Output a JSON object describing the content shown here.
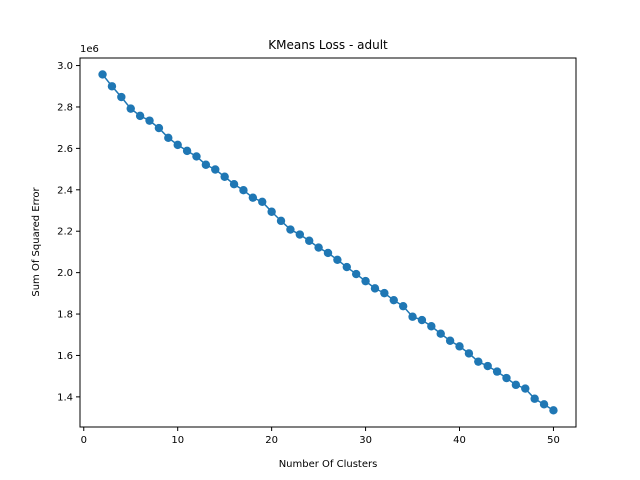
{
  "chart_data": {
    "type": "line",
    "title": "KMeans Loss - adult",
    "xlabel": "Number Of Clusters",
    "ylabel": "Sum Of Squared Error",
    "y_offset_label": "1e6",
    "xlim": [
      -0.4,
      52.4
    ],
    "ylim": [
      1.2545,
      3.0365
    ],
    "xticks": [
      0,
      10,
      20,
      30,
      40,
      50
    ],
    "xtick_labels": [
      "0",
      "10",
      "20",
      "30",
      "40",
      "50"
    ],
    "yticks": [
      1.4,
      1.6,
      1.8,
      2.0,
      2.2,
      2.4,
      2.6,
      2.8,
      3.0
    ],
    "ytick_labels": [
      "1.4",
      "1.6",
      "1.8",
      "2.0",
      "2.2",
      "2.4",
      "2.6",
      "2.8",
      "3.0"
    ],
    "grid": false,
    "marker": "circle",
    "color": "#1f77b4",
    "x": [
      2,
      3,
      4,
      5,
      6,
      7,
      8,
      9,
      10,
      11,
      12,
      13,
      14,
      15,
      16,
      17,
      18,
      19,
      20,
      21,
      22,
      23,
      24,
      25,
      26,
      27,
      28,
      29,
      30,
      31,
      32,
      33,
      34,
      35,
      36,
      37,
      38,
      39,
      40,
      41,
      42,
      43,
      44,
      45,
      46,
      47,
      48,
      49,
      50
    ],
    "y": [
      2.957,
      2.9,
      2.848,
      2.792,
      2.757,
      2.734,
      2.698,
      2.651,
      2.617,
      2.588,
      2.561,
      2.521,
      2.498,
      2.463,
      2.427,
      2.398,
      2.362,
      2.342,
      2.294,
      2.25,
      2.208,
      2.184,
      2.154,
      2.121,
      2.095,
      2.062,
      2.027,
      1.993,
      1.959,
      1.924,
      1.901,
      1.867,
      1.838,
      1.787,
      1.771,
      1.741,
      1.705,
      1.671,
      1.644,
      1.61,
      1.57,
      1.549,
      1.522,
      1.491,
      1.458,
      1.44,
      1.391,
      1.364,
      1.335
    ]
  }
}
